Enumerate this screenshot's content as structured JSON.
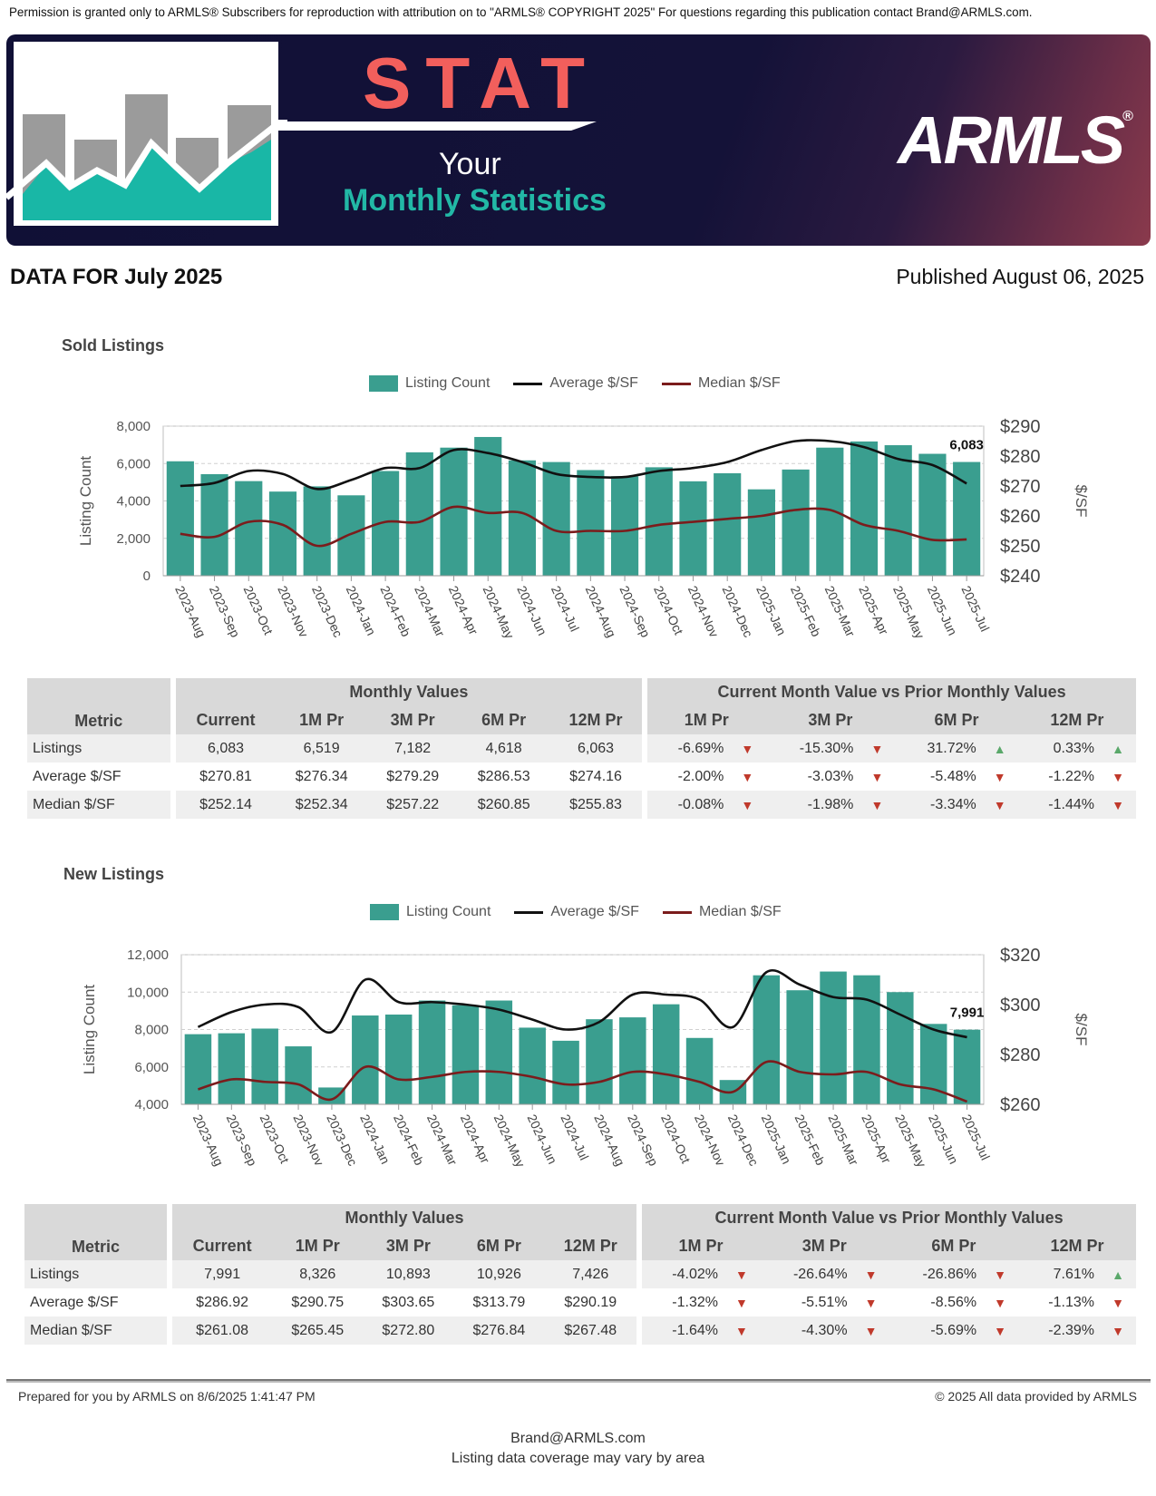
{
  "permission_text": "Permission is granted only to ARMLS® Subscribers for reproduction with attribution on to \"ARMLS® COPYRIGHT 2025\" For questions regarding this publication contact Brand@ARMLS.com.",
  "banner": {
    "title": "STAT",
    "subtitle_line1": "Your",
    "subtitle_line2": "Monthly Statistics",
    "logo": "ARMLS",
    "logo_mark": "®",
    "colors": {
      "title": "#f25f5c",
      "accent": "#22b8a6",
      "background": "#131238"
    }
  },
  "report": {
    "data_for": "DATA FOR July 2025",
    "published": "Published August 06, 2025"
  },
  "sections": [
    {
      "title": "Sold Listings",
      "legend": [
        "Listing Count",
        "Average $/SF",
        "Median $/SF"
      ],
      "table": {
        "group_monthly": "Monthly Values",
        "group_compare": "Current Month Value vs Prior Monthly Values",
        "headers": [
          "Metric",
          "Current",
          "1M Pr",
          "3M Pr",
          "6M Pr",
          "12M Pr",
          "1M Pr",
          "3M Pr",
          "6M Pr",
          "12M Pr"
        ],
        "rows": [
          {
            "metric": "Listings",
            "values": [
              "6,083",
              "6,519",
              "7,182",
              "4,618",
              "6,063"
            ],
            "pcts": [
              "-6.69%",
              "-15.30%",
              "31.72%",
              "0.33%"
            ],
            "dirs": [
              "down",
              "down",
              "up",
              "up"
            ]
          },
          {
            "metric": "Average $/SF",
            "values": [
              "$270.81",
              "$276.34",
              "$279.29",
              "$286.53",
              "$274.16"
            ],
            "pcts": [
              "-2.00%",
              "-3.03%",
              "-5.48%",
              "-1.22%"
            ],
            "dirs": [
              "down",
              "down",
              "down",
              "down"
            ]
          },
          {
            "metric": "Median $/SF",
            "values": [
              "$252.14",
              "$252.34",
              "$257.22",
              "$260.85",
              "$255.83"
            ],
            "pcts": [
              "-0.08%",
              "-1.98%",
              "-3.34%",
              "-1.44%"
            ],
            "dirs": [
              "down",
              "down",
              "down",
              "down"
            ]
          }
        ]
      }
    },
    {
      "title": "New Listings",
      "legend": [
        "Listing Count",
        "Average $/SF",
        "Median $/SF"
      ],
      "table": {
        "group_monthly": "Monthly Values",
        "group_compare": "Current Month Value vs Prior Monthly Values",
        "headers": [
          "Metric",
          "Current",
          "1M Pr",
          "3M Pr",
          "6M Pr",
          "12M Pr",
          "1M Pr",
          "3M Pr",
          "6M Pr",
          "12M Pr"
        ],
        "rows": [
          {
            "metric": "Listings",
            "values": [
              "7,991",
              "8,326",
              "10,893",
              "10,926",
              "7,426"
            ],
            "pcts": [
              "-4.02%",
              "-26.64%",
              "-26.86%",
              "7.61%"
            ],
            "dirs": [
              "down",
              "down",
              "down",
              "up"
            ]
          },
          {
            "metric": "Average $/SF",
            "values": [
              "$286.92",
              "$290.75",
              "$303.65",
              "$313.79",
              "$290.19"
            ],
            "pcts": [
              "-1.32%",
              "-5.51%",
              "-8.56%",
              "-1.13%"
            ],
            "dirs": [
              "down",
              "down",
              "down",
              "down"
            ]
          },
          {
            "metric": "Median $/SF",
            "values": [
              "$261.08",
              "$265.45",
              "$272.80",
              "$276.84",
              "$267.48"
            ],
            "pcts": [
              "-1.64%",
              "-4.30%",
              "-5.69%",
              "-2.39%"
            ],
            "dirs": [
              "down",
              "down",
              "down",
              "down"
            ]
          }
        ]
      }
    }
  ],
  "chart_data": [
    {
      "type": "bar",
      "categories": [
        "2023-Aug",
        "2023-Sep",
        "2023-Oct",
        "2023-Nov",
        "2023-Dec",
        "2024-Jan",
        "2024-Feb",
        "2024-Mar",
        "2024-Apr",
        "2024-May",
        "2024-Jun",
        "2024-Jul",
        "2024-Aug",
        "2024-Sep",
        "2024-Oct",
        "2024-Nov",
        "2024-Dec",
        "2025-Jan",
        "2025-Feb",
        "2025-Mar",
        "2025-Apr",
        "2025-May",
        "2025-Jun",
        "2025-Jul"
      ],
      "series": [
        {
          "name": "Listing Count",
          "type": "bar",
          "axis": "left",
          "color": "#3a9e8f",
          "values": [
            6120,
            5430,
            5060,
            4500,
            4780,
            4300,
            5600,
            6600,
            6850,
            7420,
            6170,
            6080,
            5650,
            5320,
            5800,
            5050,
            5480,
            4620,
            5680,
            6850,
            7180,
            6980,
            6520,
            6083
          ]
        },
        {
          "name": "Average $/SF",
          "type": "line",
          "axis": "right",
          "color": "#111111",
          "values": [
            270,
            271,
            275,
            274,
            269,
            272,
            276,
            276,
            282,
            281,
            278,
            274,
            273,
            273,
            275,
            276,
            278,
            282,
            285,
            285,
            283,
            279,
            277,
            270.81
          ]
        },
        {
          "name": "Median $/SF",
          "type": "line",
          "axis": "right",
          "color": "#7b1c1c",
          "values": [
            254,
            253,
            258,
            257,
            250,
            254,
            258,
            258,
            263,
            261,
            261,
            255,
            255,
            255,
            257,
            258,
            259,
            260,
            262,
            262,
            257,
            255,
            252,
            252.14
          ]
        }
      ],
      "ylabel": "Listing Count",
      "y2label": "$/SF",
      "ylim": [
        0,
        8000
      ],
      "yticks": [
        "0",
        "2,000",
        "4,000",
        "6,000",
        "8,000"
      ],
      "y2lim": [
        240,
        290
      ],
      "y2ticks": [
        "$240",
        "$250",
        "$260",
        "$270",
        "$280",
        "$290"
      ],
      "last_label": "6,083",
      "grid": true,
      "legend_position": "top"
    },
    {
      "type": "bar",
      "categories": [
        "2023-Aug",
        "2023-Sep",
        "2023-Oct",
        "2023-Nov",
        "2023-Dec",
        "2024-Jan",
        "2024-Feb",
        "2024-Mar",
        "2024-Apr",
        "2024-May",
        "2024-Jun",
        "2024-Jul",
        "2024-Aug",
        "2024-Sep",
        "2024-Oct",
        "2024-Nov",
        "2024-Dec",
        "2025-Jan",
        "2025-Feb",
        "2025-Mar",
        "2025-Apr",
        "2025-May",
        "2025-Jun",
        "2025-Jul"
      ],
      "series": [
        {
          "name": "Listing Count",
          "type": "bar",
          "axis": "left",
          "color": "#3a9e8f",
          "values": [
            7750,
            7800,
            8050,
            7100,
            4900,
            8750,
            8800,
            9550,
            9300,
            9550,
            8100,
            7400,
            8550,
            8650,
            9350,
            7550,
            5300,
            10900,
            10100,
            11100,
            10900,
            10000,
            8300,
            7991
          ]
        },
        {
          "name": "Average $/SF",
          "type": "line",
          "axis": "right",
          "color": "#111111",
          "values": [
            291,
            297,
            300,
            299,
            289,
            310,
            301,
            301,
            300,
            298,
            294,
            290,
            293,
            304,
            304,
            302,
            291,
            313,
            308,
            303,
            302,
            296,
            290,
            286.92
          ]
        },
        {
          "name": "Median $/SF",
          "type": "line",
          "axis": "right",
          "color": "#7b1c1c",
          "values": [
            266,
            270,
            269,
            268,
            262,
            275,
            270,
            271,
            273,
            273,
            271,
            268,
            269,
            273,
            272,
            269,
            265,
            277,
            273,
            272,
            273,
            268,
            266,
            261.08
          ]
        }
      ],
      "ylabel": "Listing Count",
      "y2label": "$/SF",
      "ylim": [
        4000,
        12000
      ],
      "yticks": [
        "4,000",
        "6,000",
        "8,000",
        "10,000",
        "12,000"
      ],
      "y2lim": [
        260,
        320
      ],
      "y2ticks": [
        "$260",
        "$280",
        "$300",
        "$320"
      ],
      "last_label": "7,991",
      "grid": true,
      "legend_position": "top"
    }
  ],
  "footer": {
    "prepared": "Prepared for you by ARMLS on 8/6/2025 1:41:47 PM",
    "provided": "© 2025 All data provided by ARMLS",
    "email": "Brand@ARMLS.com",
    "coverage": "Listing data coverage may vary by area"
  }
}
